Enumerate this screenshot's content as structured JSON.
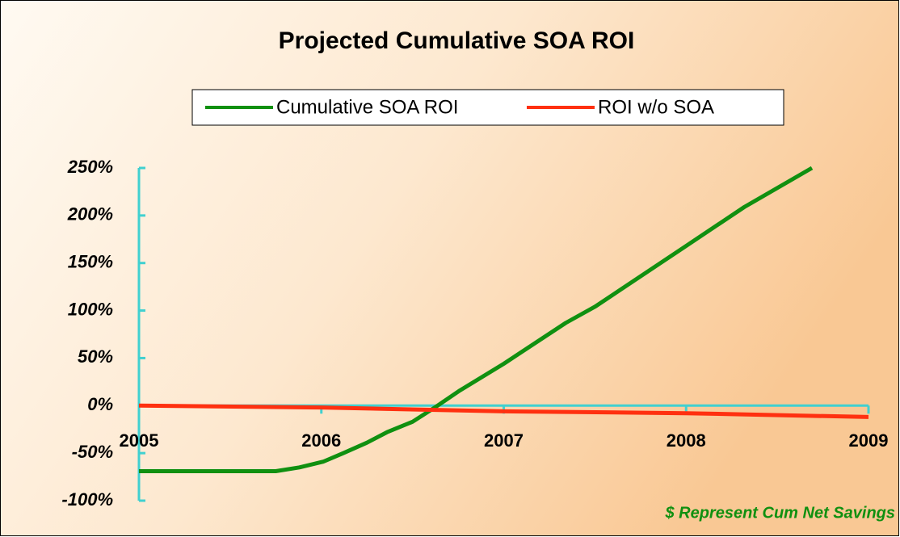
{
  "chart_data": {
    "type": "line",
    "title": "Projected Cumulative SOA ROI",
    "annotation": "$ Represent Cum Net Savings",
    "xlim": [
      2005,
      2009
    ],
    "xticks": [
      2005,
      2006,
      2007,
      2008,
      2009
    ],
    "ylim": [
      -100,
      250
    ],
    "yticks": [
      {
        "value": -100,
        "label": "-100%"
      },
      {
        "value": -50,
        "label": "-50%"
      },
      {
        "value": 0,
        "label": "0%"
      },
      {
        "value": 50,
        "label": "50%"
      },
      {
        "value": 100,
        "label": "100%"
      },
      {
        "value": 150,
        "label": "150%"
      },
      {
        "value": 200,
        "label": "200%"
      },
      {
        "value": 250,
        "label": "250%"
      }
    ],
    "series": [
      {
        "name": "Cumulative SOA ROI",
        "color": "#109010",
        "x": [
          2005,
          2005.75,
          2005.88,
          2006.01,
          2006.12,
          2006.25,
          2006.36,
          2006.5,
          2006.63,
          2006.76,
          2007,
          2007.34,
          2007.5,
          2008,
          2008.32,
          2008.69
        ],
        "values": [
          -69,
          -69,
          -65,
          -59,
          -50,
          -39,
          -28,
          -17,
          -1,
          16,
          44,
          87,
          104,
          168,
          209,
          250
        ]
      },
      {
        "name": "ROI w/o SOA",
        "color": "#ff3010",
        "x": [
          2005,
          2006,
          2007,
          2008,
          2009
        ],
        "values": [
          0,
          -2,
          -6,
          -8,
          -12
        ]
      }
    ]
  }
}
